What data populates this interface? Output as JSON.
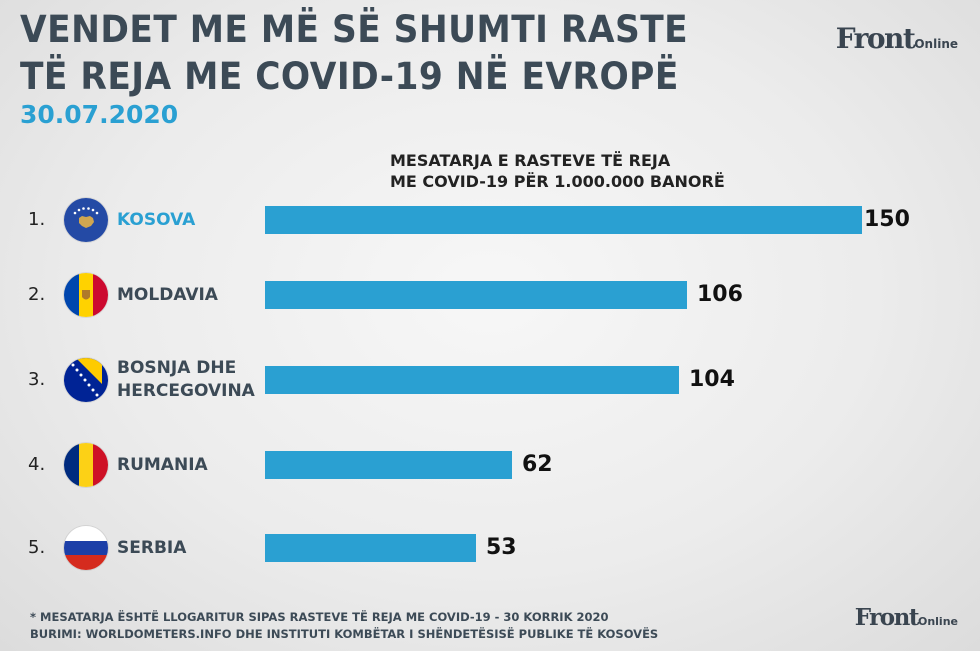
{
  "header": {
    "title_line1": "VENDET ME MË SË SHUMTI RASTE",
    "title_line2": "TË REJA ME COVID-19 NË EVROPË",
    "date": "30.07.2020",
    "logo_main": "Front",
    "logo_small": "Online"
  },
  "chart_data": {
    "type": "bar",
    "orientation": "horizontal",
    "title": "MESATARJA E RASTEVE TË REJA\nME COVID-19 PËR 1.000.000 BANORË",
    "ranks": [
      "1.",
      "2.",
      "3.",
      "4.",
      "5."
    ],
    "categories": [
      "KOSOVA",
      "MOLDAVIA",
      "BOSNJA DHE\nHERCEGOVINA",
      "RUMANIA",
      "SERBIA"
    ],
    "values": [
      150,
      106,
      104,
      62,
      53
    ],
    "value_labels": [
      "150",
      "106",
      "104",
      "62",
      "53"
    ],
    "flag_icons": [
      "kosovo-flag-icon",
      "moldova-flag-icon",
      "bosnia-flag-icon",
      "romania-flag-icon",
      "serbia-flag-icon"
    ],
    "highlight_color": "#2aa0d2",
    "bar_color": "#2aa0d2",
    "xlim": [
      0,
      150
    ],
    "grid": false,
    "legend": "none"
  },
  "footer": {
    "note": "* MESATARJA ËSHTË LLOGARITUR SIPAS RASTEVE TË REJA ME COVID-19 - 30 KORRIK 2020",
    "source": "BURIMI: WORLDOMETERS.INFO DHE INSTITUTI KOMBËTAR I SHËNDETËSISË PUBLIKE TË KOSOVËS"
  }
}
